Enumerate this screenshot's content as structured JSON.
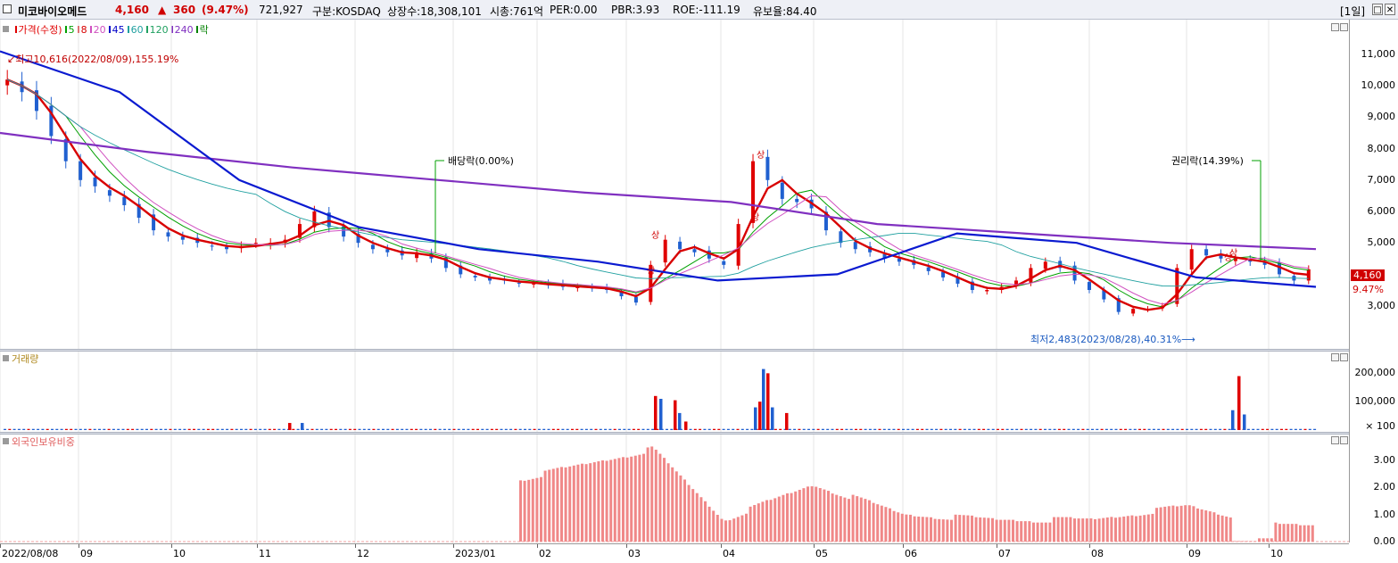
{
  "header": {
    "stock_name": "미코바이오메드",
    "price": "4,160",
    "change_arrow": "▲",
    "change": "360",
    "change_pct": "(9.47%)",
    "volume": "721,927",
    "market": "구분:KOSDAQ",
    "shares": "상장수:18,308,101",
    "mcap": "시총:761억",
    "per": "PER:0.00",
    "pbr": "PBR:3.93",
    "roe": "ROE:-111.19",
    "float": "유보율:84.40",
    "period": "[1일]",
    "close_glyph": "✕"
  },
  "price_panel": {
    "legend": [
      {
        "text": "가격(수정)",
        "color": "#e00000"
      },
      {
        "text": "5",
        "color": "#00a000"
      },
      {
        "text": "8",
        "color": "#d80000"
      },
      {
        "text": "20",
        "color": "#d050c0"
      },
      {
        "text": "45",
        "color": "#0000c8"
      },
      {
        "text": "60",
        "color": "#20a0a0"
      },
      {
        "text": "120",
        "color": "#20a060"
      },
      {
        "text": "240",
        "color": "#8030c0"
      },
      {
        "text": "락",
        "color": "#008000"
      }
    ],
    "annotations": {
      "high": "최고10,616(2022/08/09),155.19%",
      "low": "최저2,483(2023/08/28),40.31%",
      "dividend": "배당락(0.00%)",
      "rights": "권리락(14.39%)"
    },
    "current_price_label": "4,160",
    "current_pct_label": "9.47%",
    "yticks": [
      "11,000",
      "10,000",
      "9,000",
      "8,000",
      "7,000",
      "6,000",
      "5,000",
      "3,000"
    ],
    "up_markers": [
      "상",
      "상",
      "상",
      "상",
      "상",
      "상"
    ]
  },
  "volume_panel": {
    "legend": "거래량",
    "legend_color": "#c0a040",
    "yticks": [
      "200,000",
      "100,000",
      "× 100"
    ]
  },
  "foreign_panel": {
    "legend": "외국인보유비중",
    "legend_color": "#f08080",
    "yticks": [
      "3.00",
      "2.00",
      "1.00",
      "0.00"
    ]
  },
  "xaxis": {
    "labels": [
      "2022/08/08",
      "09",
      "10",
      "11",
      "12",
      "2023/01",
      "02",
      "03",
      "04",
      "05",
      "06",
      "07",
      "08",
      "09",
      "10"
    ]
  },
  "chart_data": {
    "type": "candlestick",
    "series": [
      {
        "name": "가격(수정)",
        "kind": "candle",
        "approx_close": [
          {
            "date": "2022-08",
            "values": [
              10200,
              9800,
              9200,
              8400,
              7600,
              7000
            ]
          },
          {
            "date": "2022-09",
            "values": [
              6800,
              6500,
              6200,
              5800,
              5400,
              5200
            ]
          },
          {
            "date": "2022-10",
            "values": [
              5100,
              5000,
              4900,
              4800,
              4900,
              5000
            ]
          },
          {
            "date": "2022-11",
            "values": [
              5000,
              5100,
              5600,
              6000,
              5500,
              5200
            ]
          },
          {
            "date": "2022-12",
            "values": [
              5000,
              4800,
              4700,
              4600,
              4700,
              4500
            ]
          },
          {
            "date": "2023-01",
            "values": [
              4200,
              4000,
              3900,
              3800,
              3800,
              3700
            ]
          },
          {
            "date": "2023-02",
            "values": [
              3700,
              3650,
              3600,
              3600,
              3550,
              3500
            ]
          },
          {
            "date": "2023-03",
            "values": [
              3300,
              3100,
              4300,
              5100,
              4800,
              4700
            ]
          },
          {
            "date": "2023-04",
            "values": [
              4500,
              4300,
              5600,
              7600,
              7000,
              6400
            ]
          },
          {
            "date": "2023-05",
            "values": [
              6300,
              6100,
              5400,
              5000,
              4800,
              4700
            ]
          },
          {
            "date": "2023-06",
            "values": [
              4500,
              4400,
              4300,
              4100,
              3900,
              3700
            ]
          },
          {
            "date": "2023-07",
            "values": [
              3500,
              3500,
              3600,
              3800,
              4200,
              4400
            ]
          },
          {
            "date": "2023-08",
            "values": [
              4200,
              3800,
              3500,
              3200,
              2800,
              2900
            ]
          },
          {
            "date": "2023-09",
            "values": [
              2900,
              3000,
              4200,
              4800,
              4600,
              4500
            ]
          },
          {
            "date": "2023-10",
            "values": [
              4500,
              4400,
              4300,
              4000,
              3800,
              4160
            ]
          }
        ]
      },
      {
        "name": "240",
        "kind": "ma",
        "approx": [
          8500,
          7900,
          7400,
          7000,
          6600,
          6300,
          5600,
          5300,
          5000,
          4800
        ]
      },
      {
        "name": "45",
        "kind": "ma",
        "approx": [
          11100,
          9800,
          7000,
          5500,
          4800,
          4400,
          3800,
          4000,
          5300,
          5000,
          3900,
          3600
        ]
      }
    ],
    "price_high": 10616,
    "price_low": 2483,
    "last_close": 4160,
    "last_change": 360,
    "last_change_pct": 9.47,
    "volume_approx_peaks": [
      {
        "date": "2023-03",
        "value": 120000
      },
      {
        "date": "2023-04",
        "value": 215000
      },
      {
        "date": "2023-09",
        "value": 190000
      }
    ],
    "foreign_holding_pct_approx": [
      {
        "date": "2023-02",
        "value": 2.3
      },
      {
        "date": "2023-03",
        "value": 3.4
      },
      {
        "date": "2023-04",
        "value": 0.8
      },
      {
        "date": "2023-05",
        "value": 2.1
      },
      {
        "date": "2023-06",
        "value": 1.0
      },
      {
        "date": "2023-07",
        "value": 0.8
      },
      {
        "date": "2023-08",
        "value": 0.8
      },
      {
        "date": "2023-09",
        "value": 1.3
      },
      {
        "date": "2023-10",
        "value": 0.6
      }
    ]
  }
}
